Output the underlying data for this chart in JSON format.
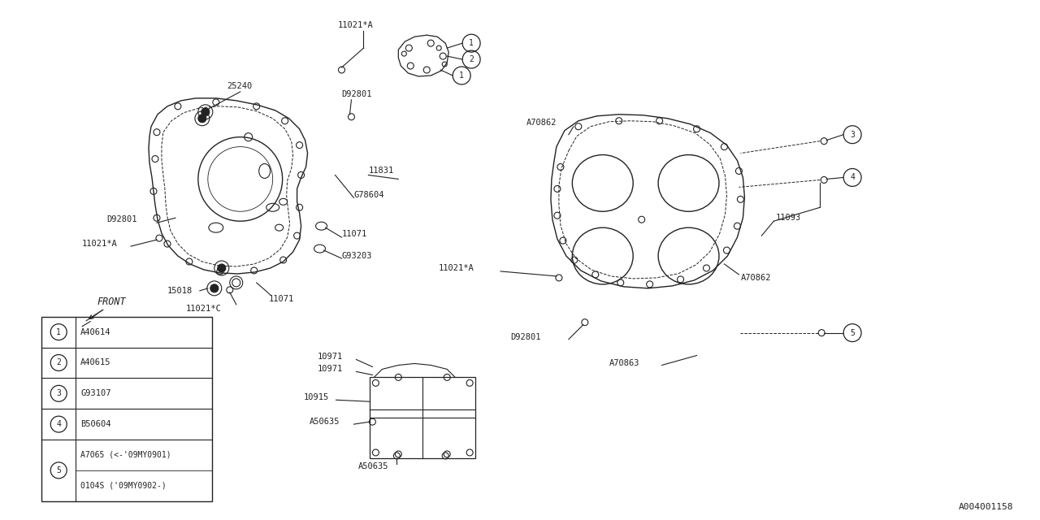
{
  "bg_color": "#ffffff",
  "line_color": "#222222",
  "watermark": "A004001158",
  "legend": [
    {
      "num": "1",
      "code": "A40614"
    },
    {
      "num": "2",
      "code": "A40615"
    },
    {
      "num": "3",
      "code": "G93107"
    },
    {
      "num": "4",
      "code": "B50604"
    },
    {
      "num": "5",
      "code_a": "A7065 (<-'09MY0901)",
      "code_b": "0104S ('09MY0902-)"
    }
  ],
  "figsize": [
    12.8,
    6.4
  ],
  "dpi": 100
}
